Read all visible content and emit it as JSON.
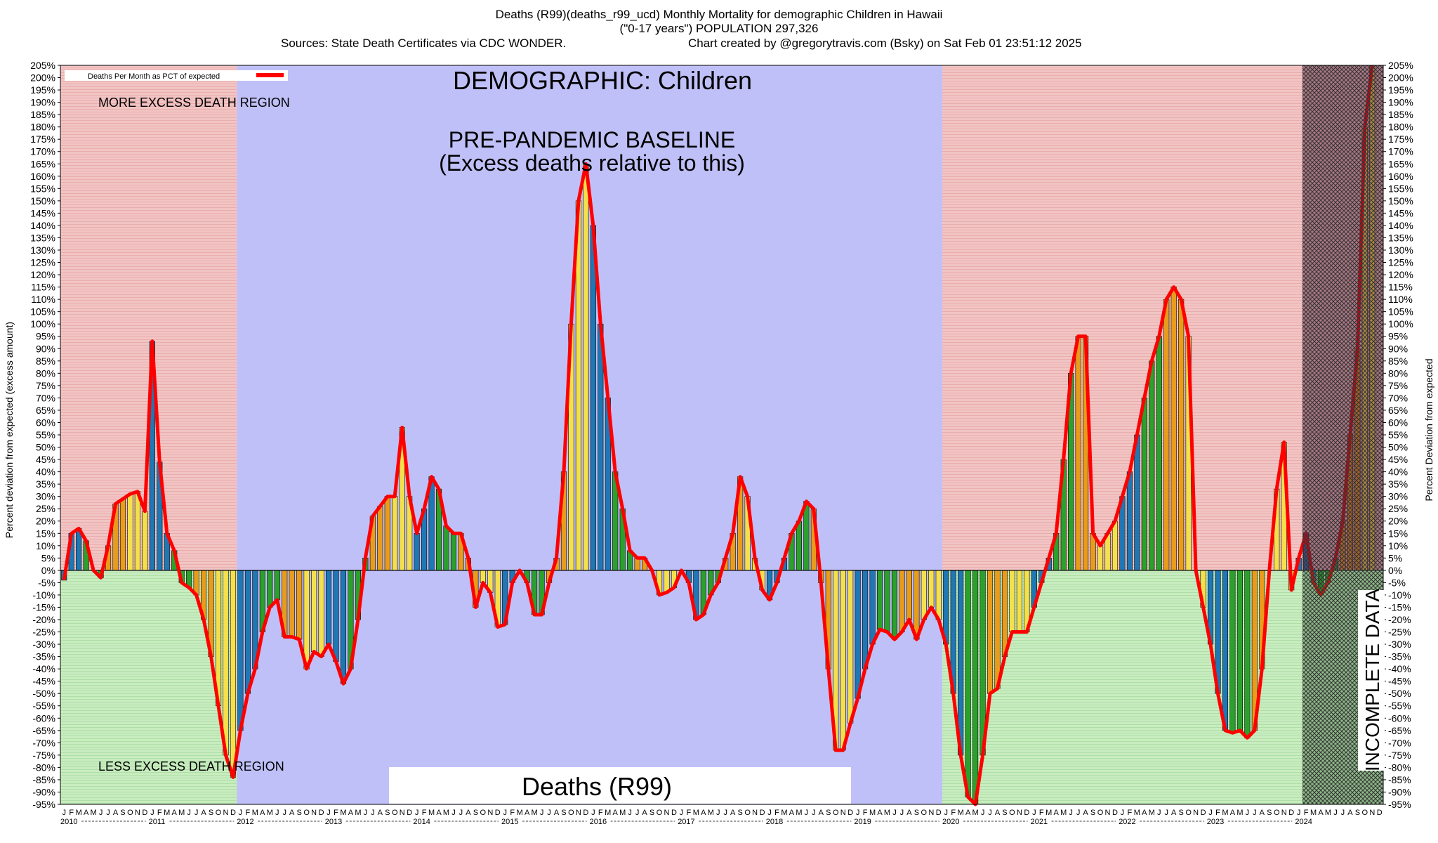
{
  "header": {
    "line1": "Deaths (R99)(deaths_r99_ucd) Monthly Mortality for demographic Children in Hawaii",
    "line2": "(\"0-17 years\") POPULATION 297,326",
    "line3_left": "Sources: State Death Certificates via CDC WONDER.",
    "line3_right": "Chart created by @gregorytravis.com (Bsky) on Sat Feb 01 23:51:12 2025"
  },
  "annotations": {
    "demographic": "DEMOGRAPHIC: Children",
    "baseline_line1": "PRE-PANDEMIC BASELINE",
    "baseline_line2": "(Excess deaths relative to this)",
    "more_region": "MORE EXCESS DEATH REGION",
    "less_region": "LESS EXCESS DEATH REGION",
    "incomplete": "INCOMPLETE DATA",
    "bottom_label": "Deaths (R99)"
  },
  "legend": {
    "label": "Deaths Per Month as PCT of expected"
  },
  "colors": {
    "more_region": "#f2c4c4",
    "less_region": "#c8ecc0",
    "baseline_region": "#c0c0f8",
    "line": "#ff0000",
    "bars": [
      "#1f77b4",
      "#2ca02c",
      "#e89c1c",
      "#f4e04d",
      "#1f77b4",
      "#2ca02c",
      "#e89c1c",
      "#f4e04d"
    ]
  },
  "chart_data": {
    "type": "bar",
    "title": "Deaths (R99)(deaths_r99_ucd) Monthly Mortality for demographic Children in Hawaii",
    "ylabel_left": "Percent deviation from expected (excess amount)",
    "ylabel_right": "Percent Deviation from expected",
    "ylim": [
      -95,
      205
    ],
    "y_tick_step": 5,
    "x_start": "2010-01",
    "month_letters": [
      "J",
      "F",
      "M",
      "A",
      "M",
      "J",
      "J",
      "A",
      "S",
      "O",
      "N",
      "D"
    ],
    "years": [
      "2010",
      "2011",
      "2012",
      "2013",
      "2014",
      "2015",
      "2016",
      "2017",
      "2018",
      "2019",
      "2020",
      "2021",
      "2022",
      "2023",
      "2024"
    ],
    "regions": {
      "baseline": [
        "2012-01",
        "2019-12"
      ],
      "incomplete": [
        "2024-02",
        "2024-12"
      ]
    },
    "series": [
      {
        "name": "Deaths Per Month as PCT of expected",
        "values": [
          -4,
          15,
          17,
          12,
          0,
          -3,
          10,
          27,
          29,
          31,
          32,
          24,
          93,
          44,
          15,
          8,
          -5,
          -7,
          -10,
          -20,
          -35,
          -55,
          -75,
          -84,
          -65,
          -50,
          -40,
          -25,
          -15,
          -12,
          -27,
          -27,
          -28,
          -40,
          -33,
          -35,
          -30,
          -37,
          -46,
          -40,
          -20,
          5,
          22,
          26,
          30,
          30,
          58,
          30,
          15,
          25,
          38,
          33,
          18,
          15,
          15,
          5,
          -15,
          -5,
          -9,
          -23,
          -22,
          -5,
          0,
          -5,
          -18,
          -18,
          -5,
          5,
          40,
          100,
          150,
          165,
          140,
          100,
          70,
          40,
          25,
          8,
          5,
          5,
          0,
          -10,
          -9,
          -7,
          0,
          -5,
          -20,
          -18,
          -10,
          -5,
          5,
          15,
          38,
          30,
          5,
          -8,
          -12,
          -5,
          5,
          15,
          20,
          28,
          25,
          -5,
          -40,
          -73,
          -73,
          -62,
          -52,
          -40,
          -30,
          -24,
          -25,
          -28,
          -25,
          -20,
          -28,
          -20,
          -15,
          -20,
          -30,
          -50,
          -75,
          -92,
          -95,
          -75,
          -50,
          -48,
          -35,
          -25,
          -25,
          -25,
          -15,
          -5,
          5,
          15,
          45,
          80,
          95,
          95,
          15,
          10,
          15,
          20,
          30,
          40,
          55,
          70,
          85,
          95,
          110,
          115,
          110,
          95,
          0,
          -15,
          -30,
          -50,
          -65,
          -66,
          -65,
          -68,
          -65,
          -40,
          0,
          33,
          52,
          -8,
          5,
          15,
          -5,
          -10,
          -5,
          5,
          20,
          55,
          90,
          180,
          205
        ]
      }
    ]
  }
}
